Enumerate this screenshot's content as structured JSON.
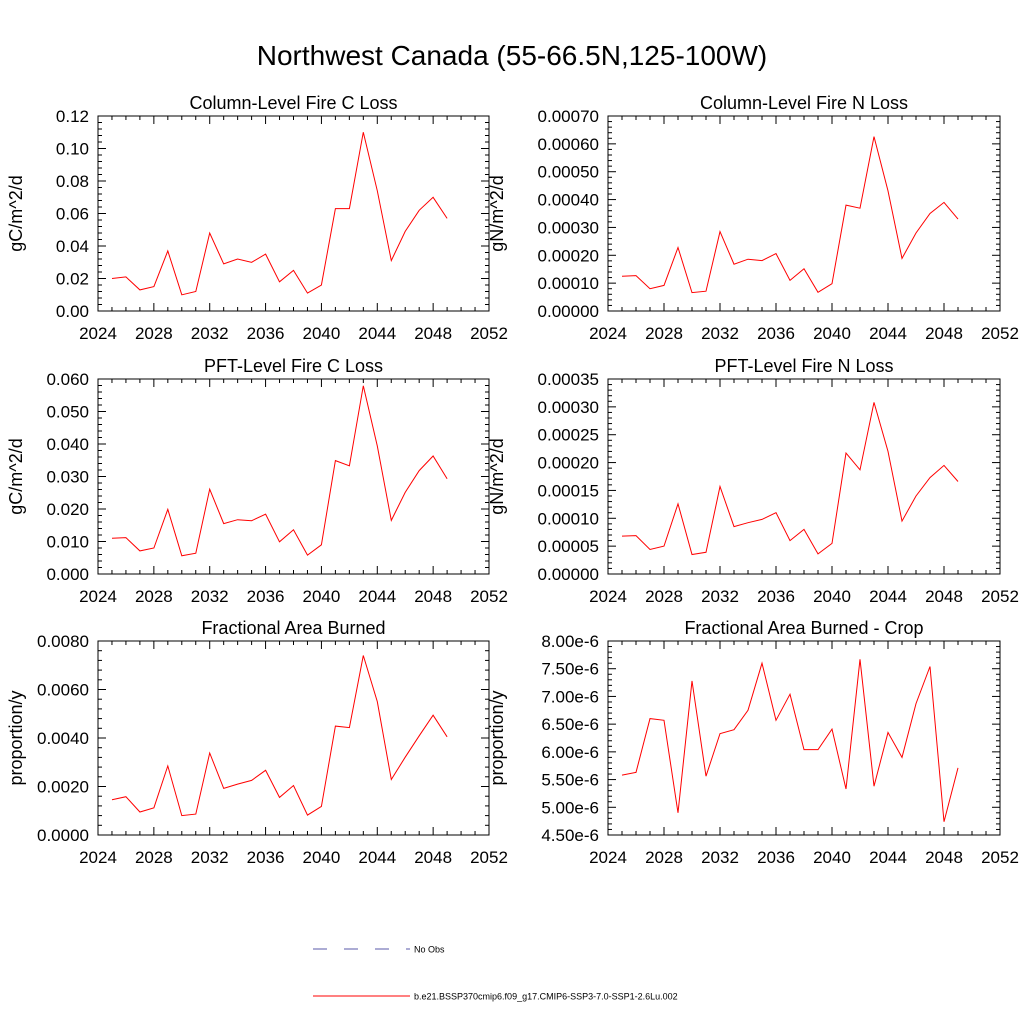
{
  "title": "Northwest Canada (55-66.5N,125-100W)",
  "legend": [
    {
      "label": "No Obs",
      "color": "#5a5aa8",
      "style": "dashed"
    },
    {
      "label": "b.e21.BSSP370cmip6.f09_g17.CMIP6-SSP3-7.0-SSP1-2.6Lu.002",
      "color": "#ff0000",
      "style": "solid"
    }
  ],
  "chart_data": [
    {
      "type": "line",
      "title": "Column-Level Fire C Loss",
      "ylabel": "gC/m^2/d",
      "xlim": [
        2024,
        2052
      ],
      "ylim": [
        0,
        0.12
      ],
      "xticks": [
        2024,
        2028,
        2032,
        2036,
        2040,
        2044,
        2048,
        2052
      ],
      "xtick_labels": [
        "2024",
        "2028",
        "2032",
        "2036",
        "2040",
        "2044",
        "2048",
        "2052"
      ],
      "yticks": [
        0,
        0.02,
        0.04,
        0.06,
        0.08,
        0.1,
        0.12
      ],
      "ytick_labels": [
        "0.00",
        "0.02",
        "0.04",
        "0.06",
        "0.08",
        "0.10",
        "0.12"
      ],
      "series": [
        {
          "color": "#ff0000",
          "x": [
            2025,
            2026,
            2027,
            2028,
            2029,
            2030,
            2031,
            2032,
            2033,
            2034,
            2035,
            2036,
            2037,
            2038,
            2039,
            2040,
            2041,
            2042,
            2043,
            2044,
            2045,
            2046,
            2047,
            2048,
            2049
          ],
          "values": [
            0.02,
            0.021,
            0.013,
            0.015,
            0.037,
            0.01,
            0.012,
            0.048,
            0.029,
            0.032,
            0.03,
            0.035,
            0.018,
            0.025,
            0.011,
            0.016,
            0.063,
            0.063,
            0.11,
            0.074,
            0.031,
            0.049,
            0.062,
            0.07,
            0.057
          ]
        }
      ]
    },
    {
      "type": "line",
      "title": "Column-Level Fire N Loss",
      "ylabel": "gN/m^2/d",
      "xlim": [
        2024,
        2052
      ],
      "ylim": [
        0,
        0.0007
      ],
      "xticks": [
        2024,
        2028,
        2032,
        2036,
        2040,
        2044,
        2048,
        2052
      ],
      "xtick_labels": [
        "2024",
        "2028",
        "2032",
        "2036",
        "2040",
        "2044",
        "2048",
        "2052"
      ],
      "yticks": [
        0,
        0.0001,
        0.0002,
        0.0003,
        0.0004,
        0.0005,
        0.0006,
        0.0007
      ],
      "ytick_labels": [
        "0.00000",
        "0.00010",
        "0.00020",
        "0.00030",
        "0.00040",
        "0.00050",
        "0.00060",
        "0.00070"
      ],
      "series": [
        {
          "color": "#ff0000",
          "x": [
            2025,
            2026,
            2027,
            2028,
            2029,
            2030,
            2031,
            2032,
            2033,
            2034,
            2035,
            2036,
            2037,
            2038,
            2039,
            2040,
            2041,
            2042,
            2043,
            2044,
            2045,
            2046,
            2047,
            2048,
            2049
          ],
          "values": [
            0.000125,
            0.000127,
            8e-05,
            9.2e-05,
            0.000228,
            6.6e-05,
            7.1e-05,
            0.000285,
            0.000168,
            0.000186,
            0.000181,
            0.000206,
            0.00011,
            0.000152,
            6.7e-05,
            9.8e-05,
            0.00038,
            0.000369,
            0.000626,
            0.000431,
            0.000189,
            0.00028,
            0.00035,
            0.00039,
            0.00033
          ]
        }
      ]
    },
    {
      "type": "line",
      "title": "PFT-Level Fire C Loss",
      "ylabel": "gC/m^2/d",
      "xlim": [
        2024,
        2052
      ],
      "ylim": [
        0,
        0.06
      ],
      "xticks": [
        2024,
        2028,
        2032,
        2036,
        2040,
        2044,
        2048,
        2052
      ],
      "xtick_labels": [
        "2024",
        "2028",
        "2032",
        "2036",
        "2040",
        "2044",
        "2048",
        "2052"
      ],
      "yticks": [
        0,
        0.01,
        0.02,
        0.03,
        0.04,
        0.05,
        0.06
      ],
      "ytick_labels": [
        "0.000",
        "0.010",
        "0.020",
        "0.030",
        "0.040",
        "0.050",
        "0.060"
      ],
      "series": [
        {
          "color": "#ff0000",
          "x": [
            2025,
            2026,
            2027,
            2028,
            2029,
            2030,
            2031,
            2032,
            2033,
            2034,
            2035,
            2036,
            2037,
            2038,
            2039,
            2040,
            2041,
            2042,
            2043,
            2044,
            2045,
            2046,
            2047,
            2048,
            2049
          ],
          "values": [
            0.011,
            0.0112,
            0.0071,
            0.008,
            0.0199,
            0.0056,
            0.0064,
            0.0261,
            0.0155,
            0.0167,
            0.0164,
            0.0184,
            0.0099,
            0.0136,
            0.0058,
            0.009,
            0.0349,
            0.0333,
            0.0579,
            0.0394,
            0.0165,
            0.0251,
            0.0318,
            0.0363,
            0.0293
          ]
        }
      ]
    },
    {
      "type": "line",
      "title": "PFT-Level Fire N Loss",
      "ylabel": "gN/m^2/d",
      "xlim": [
        2024,
        2052
      ],
      "ylim": [
        0,
        0.00035
      ],
      "xticks": [
        2024,
        2028,
        2032,
        2036,
        2040,
        2044,
        2048,
        2052
      ],
      "xtick_labels": [
        "2024",
        "2028",
        "2032",
        "2036",
        "2040",
        "2044",
        "2048",
        "2052"
      ],
      "yticks": [
        0,
        5e-05,
        0.0001,
        0.00015,
        0.0002,
        0.00025,
        0.0003,
        0.00035
      ],
      "ytick_labels": [
        "0.00000",
        "0.00005",
        "0.00010",
        "0.00015",
        "0.00020",
        "0.00025",
        "0.00030",
        "0.00035"
      ],
      "series": [
        {
          "color": "#ff0000",
          "x": [
            2025,
            2026,
            2027,
            2028,
            2029,
            2030,
            2031,
            2032,
            2033,
            2034,
            2035,
            2036,
            2037,
            2038,
            2039,
            2040,
            2041,
            2042,
            2043,
            2044,
            2045,
            2046,
            2047,
            2048,
            2049
          ],
          "values": [
            6.8e-05,
            6.9e-05,
            4.4e-05,
            5e-05,
            0.000126,
            3.5e-05,
            3.9e-05,
            0.000157,
            8.5e-05,
            9.2e-05,
            9.8e-05,
            0.00011,
            6e-05,
            8e-05,
            3.6e-05,
            5.5e-05,
            0.000217,
            0.000187,
            0.000308,
            0.00022,
            9.5e-05,
            0.00014,
            0.000173,
            0.000195,
            0.000166
          ]
        }
      ]
    },
    {
      "type": "line",
      "title": "Fractional Area Burned",
      "ylabel": "proportion/y",
      "xlim": [
        2024,
        2052
      ],
      "ylim": [
        0,
        0.008
      ],
      "xticks": [
        2024,
        2028,
        2032,
        2036,
        2040,
        2044,
        2048,
        2052
      ],
      "xtick_labels": [
        "2024",
        "2028",
        "2032",
        "2036",
        "2040",
        "2044",
        "2048",
        "2052"
      ],
      "yticks": [
        0,
        0.002,
        0.004,
        0.006,
        0.008
      ],
      "ytick_labels": [
        "0.0000",
        "0.0020",
        "0.0040",
        "0.0060",
        "0.0080"
      ],
      "series": [
        {
          "color": "#ff0000",
          "x": [
            2025,
            2026,
            2027,
            2028,
            2029,
            2030,
            2031,
            2032,
            2033,
            2034,
            2035,
            2036,
            2037,
            2038,
            2039,
            2040,
            2041,
            2042,
            2043,
            2044,
            2045,
            2046,
            2047,
            2048,
            2049
          ],
          "values": [
            0.00145,
            0.00158,
            0.00095,
            0.00112,
            0.00285,
            0.0008,
            0.00086,
            0.00338,
            0.00192,
            0.0021,
            0.00225,
            0.00267,
            0.00155,
            0.00204,
            0.00082,
            0.00118,
            0.00449,
            0.00443,
            0.0074,
            0.0055,
            0.00229,
            0.00321,
            0.00409,
            0.00494,
            0.00405
          ]
        }
      ]
    },
    {
      "type": "line",
      "title": "Fractional Area Burned - Crop",
      "ylabel": "proportion/y",
      "xlim": [
        2024,
        2052
      ],
      "ylim": [
        4.5e-06,
        8e-06
      ],
      "xticks": [
        2024,
        2028,
        2032,
        2036,
        2040,
        2044,
        2048,
        2052
      ],
      "xtick_labels": [
        "2024",
        "2028",
        "2032",
        "2036",
        "2040",
        "2044",
        "2048",
        "2052"
      ],
      "yticks": [
        4.5e-06,
        5e-06,
        5.5e-06,
        6e-06,
        6.5e-06,
        7e-06,
        7.5e-06,
        8e-06
      ],
      "ytick_labels": [
        "4.50e-6",
        "5.00e-6",
        "5.50e-6",
        "6.00e-6",
        "6.50e-6",
        "7.00e-6",
        "7.50e-6",
        "8.00e-6"
      ],
      "series": [
        {
          "color": "#ff0000",
          "x": [
            2025,
            2026,
            2027,
            2028,
            2029,
            2030,
            2031,
            2032,
            2033,
            2034,
            2035,
            2036,
            2037,
            2038,
            2039,
            2040,
            2041,
            2042,
            2043,
            2044,
            2045,
            2046,
            2047,
            2048,
            2049
          ],
          "values": [
            5.58e-06,
            5.63e-06,
            6.6e-06,
            6.57e-06,
            4.9e-06,
            7.28e-06,
            5.56e-06,
            6.33e-06,
            6.4e-06,
            6.75e-06,
            7.6e-06,
            6.57e-06,
            7.04e-06,
            6.04e-06,
            6.04e-06,
            6.41e-06,
            5.33e-06,
            7.67e-06,
            5.38e-06,
            6.35e-06,
            5.9e-06,
            6.87e-06,
            7.54e-06,
            4.74e-06,
            5.71e-06
          ]
        }
      ]
    }
  ]
}
